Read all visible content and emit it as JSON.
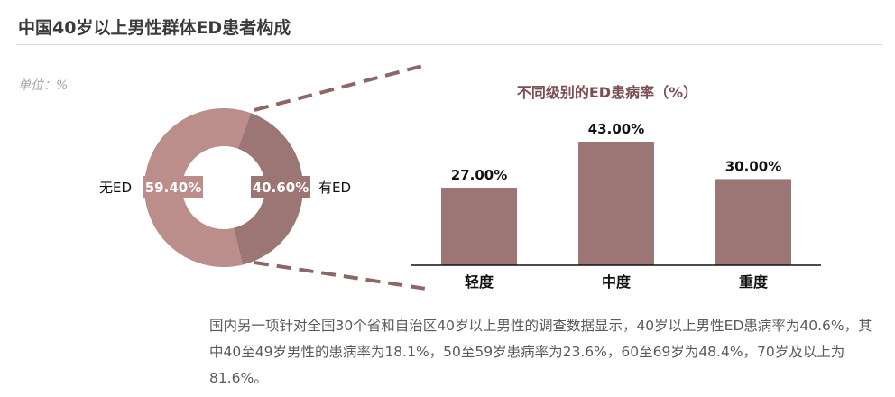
{
  "title": "中国40岁以上男性群体ED患者构成",
  "unit_label": "单位：%",
  "donut": {
    "segments": [
      {
        "name": "无ED",
        "value": 59.4,
        "label": "59.40%",
        "color": "#bb8d8b"
      },
      {
        "name": "有ED",
        "value": 40.6,
        "label": "40.60%",
        "color": "#9c7674"
      }
    ]
  },
  "chart_data": {
    "type": "bar",
    "title": "不同级别的ED患病率（%）",
    "categories": [
      "轻度",
      "中度",
      "重度"
    ],
    "values": [
      27.0,
      43.0,
      30.0
    ],
    "value_labels": [
      "27.00%",
      "43.00%",
      "30.00%"
    ],
    "ylim": [
      0,
      50
    ],
    "color": "#9c7674",
    "title_color": "#7b4f55"
  },
  "description": "国内另一项针对全国30个省和自治区40岁以上男性的调查数据显示，40岁以上男性ED患病率为40.6%，其中40至49岁男性的患病率为18.1%，50至59岁患病率为23.6%，60至69岁为48.4%，70岁及以上为81.6%。"
}
